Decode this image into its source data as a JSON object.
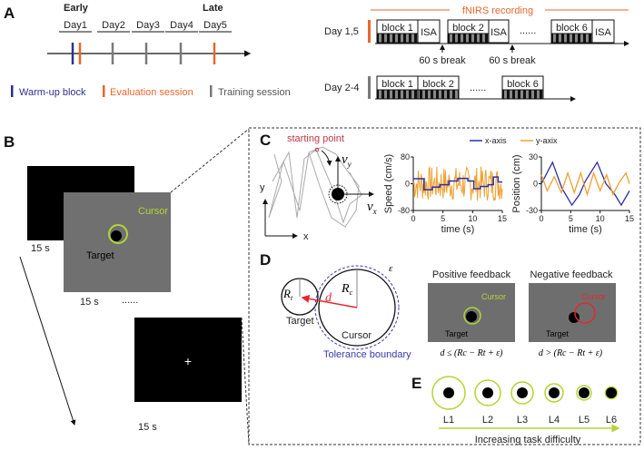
{
  "panels": {
    "a": "A",
    "b": "B",
    "c": "C",
    "d": "D",
    "e": "E"
  },
  "colors": {
    "warmup": "#2e2f8f",
    "evaluation": "#e8672c",
    "training": "#7a7a7a",
    "screen_gray": "#707070",
    "cursor_green": "#b5d334",
    "negative_red": "#e8262b",
    "tolerance_blue": "#3a3ab0",
    "x_axis_series": "#2b2fa8",
    "y_axis_series": "#f0a030"
  },
  "timeline": {
    "early": "Early",
    "late": "Late",
    "days": [
      "Day1",
      "Day2",
      "Day3",
      "Day4",
      "Day5"
    ],
    "legend": {
      "warmup": "Warm-up block",
      "evaluation": "Evaluation session",
      "training": "Training session"
    }
  },
  "protocol": {
    "recording": "fNIRS recording",
    "row1": {
      "label": "Day 1,5",
      "blocks": [
        "block 1",
        "block 2",
        "block 6"
      ],
      "isa": "ISA",
      "dots": "......",
      "break": "60 s break"
    },
    "row2": {
      "label": "Day 2-4",
      "blocks": [
        "block 1",
        "block 2",
        "block 6"
      ],
      "dots": "......"
    }
  },
  "screens": {
    "cross": "+",
    "duration": "15 s",
    "cursor": "Cursor",
    "target": "Target",
    "dots": "......"
  },
  "trajectory": {
    "start": "starting point",
    "vy": "v",
    "vy_sub": "y",
    "vx": "v",
    "vx_sub": "x",
    "x": "x",
    "y": "y"
  },
  "chart_data": [
    {
      "type": "line",
      "xlabel": "time (s)",
      "ylabel": "Speed (cm/s)",
      "xlim": [
        0,
        15
      ],
      "ylim": [
        -80,
        80
      ],
      "xticks": [
        "0",
        "5",
        "10",
        "15"
      ],
      "yticks": [
        "80",
        "0",
        "-80"
      ],
      "series": [
        {
          "name": "x-axis",
          "steps_x": [
            0,
            1.8,
            3.2,
            4.5,
            6,
            7.5,
            9.2,
            10.2,
            11.3,
            12.6,
            13.5,
            14.3,
            15
          ],
          "steps_y": [
            15,
            -18,
            -10,
            -3,
            8,
            16,
            8,
            -15,
            -8,
            -3,
            20,
            5,
            5
          ]
        },
        {
          "name": "y-axix",
          "noise_amplitude": 40
        }
      ]
    },
    {
      "type": "line",
      "xlabel": "time (s)",
      "ylabel": "Position (cm)",
      "xlim": [
        0,
        15
      ],
      "ylim": [
        -30,
        30
      ],
      "xticks": [
        "0",
        "5",
        "10",
        "15"
      ],
      "yticks": [
        "30",
        "0",
        "-30"
      ],
      "series": [
        {
          "name": "x-axis",
          "x": [
            0,
            1.9,
            3.5,
            5.2,
            6.5,
            7.5,
            9.5,
            11,
            12.5,
            13.6,
            15
          ],
          "y": [
            0,
            24,
            -5,
            -24,
            -12,
            3,
            24,
            0,
            -12,
            -24,
            -8
          ]
        },
        {
          "name": "y-axix",
          "x": [
            0,
            1,
            2.2,
            3.4,
            4.5,
            5.6,
            6.7,
            7.8,
            8.9,
            10,
            11.1,
            12.2,
            13.3,
            14.4,
            15
          ],
          "y": [
            10,
            -8,
            8,
            -10,
            12,
            -10,
            12,
            -12,
            12,
            -8,
            10,
            -12,
            2,
            12,
            0
          ]
        }
      ]
    }
  ],
  "geometry": {
    "rt": "R",
    "rt_sub": "t",
    "rc": "R",
    "rc_sub": "c",
    "d": "d",
    "eps": "ε",
    "target": "Target",
    "cursor": "Cursor",
    "tolerance": "Tolerance boundary"
  },
  "feedback": {
    "positive": {
      "title": "Positive feedback",
      "formula": "d ≤ (Rc − Rt + ε)"
    },
    "negative": {
      "title": "Negative feedback",
      "formula": "d > (Rc − Rt + ε)"
    },
    "cursor": "Cursor",
    "target": "Target"
  },
  "difficulty": {
    "levels": [
      "L1",
      "L2",
      "L3",
      "L4",
      "L5",
      "L6"
    ],
    "caption": "Increasing task difficulty"
  }
}
